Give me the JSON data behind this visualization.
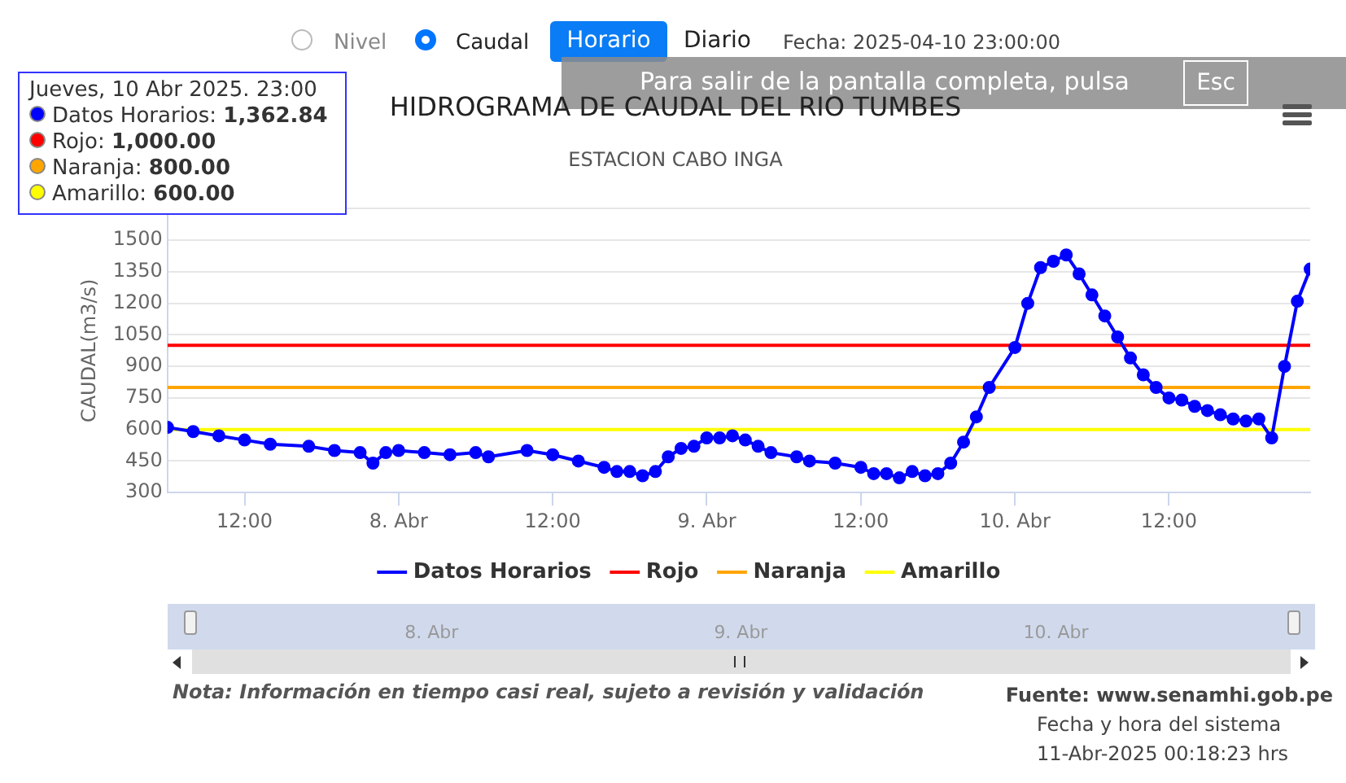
{
  "chart_data": {
    "type": "line",
    "title": "HIDROGRAMA DE CAUDAL DEL RIO TUMBES",
    "subtitle": "ESTACION CABO INGA",
    "ylabel": "CAUDAL(m3/s)",
    "series": [
      {
        "name": "Datos Horarios",
        "color": "#0000ff",
        "marker": "circle",
        "x": [
          "2025-04-07T06:00",
          "2025-04-07T08:00",
          "2025-04-07T10:00",
          "2025-04-07T12:00",
          "2025-04-07T14:00",
          "2025-04-07T17:00",
          "2025-04-07T19:00",
          "2025-04-07T21:00",
          "2025-04-07T22:00",
          "2025-04-07T23:00",
          "2025-04-08T00:00",
          "2025-04-08T02:00",
          "2025-04-08T04:00",
          "2025-04-08T06:00",
          "2025-04-08T07:00",
          "2025-04-08T10:00",
          "2025-04-08T12:00",
          "2025-04-08T14:00",
          "2025-04-08T16:00",
          "2025-04-08T17:00",
          "2025-04-08T18:00",
          "2025-04-08T19:00",
          "2025-04-08T20:00",
          "2025-04-08T21:00",
          "2025-04-08T22:00",
          "2025-04-08T23:00",
          "2025-04-09T00:00",
          "2025-04-09T01:00",
          "2025-04-09T02:00",
          "2025-04-09T03:00",
          "2025-04-09T04:00",
          "2025-04-09T05:00",
          "2025-04-09T07:00",
          "2025-04-09T08:00",
          "2025-04-09T10:00",
          "2025-04-09T12:00",
          "2025-04-09T13:00",
          "2025-04-09T14:00",
          "2025-04-09T15:00",
          "2025-04-09T16:00",
          "2025-04-09T17:00",
          "2025-04-09T18:00",
          "2025-04-09T19:00",
          "2025-04-09T20:00",
          "2025-04-09T21:00",
          "2025-04-09T22:00",
          "2025-04-10T00:00",
          "2025-04-10T01:00",
          "2025-04-10T02:00",
          "2025-04-10T03:00",
          "2025-04-10T04:00",
          "2025-04-10T05:00",
          "2025-04-10T06:00",
          "2025-04-10T07:00",
          "2025-04-10T08:00",
          "2025-04-10T09:00",
          "2025-04-10T10:00",
          "2025-04-10T11:00",
          "2025-04-10T12:00",
          "2025-04-10T13:00",
          "2025-04-10T14:00",
          "2025-04-10T15:00",
          "2025-04-10T16:00",
          "2025-04-10T17:00",
          "2025-04-10T18:00",
          "2025-04-10T19:00",
          "2025-04-10T20:00",
          "2025-04-10T21:00",
          "2025-04-10T22:00",
          "2025-04-10T23:00"
        ],
        "values": [
          610,
          590,
          570,
          550,
          530,
          520,
          500,
          490,
          440,
          490,
          500,
          490,
          480,
          490,
          470,
          500,
          480,
          450,
          420,
          400,
          400,
          380,
          400,
          470,
          510,
          520,
          560,
          560,
          570,
          550,
          520,
          490,
          470,
          450,
          440,
          420,
          390,
          390,
          370,
          400,
          380,
          390,
          440,
          540,
          660,
          800,
          990,
          1200,
          1370,
          1400,
          1430,
          1340,
          1240,
          1140,
          1040,
          940,
          860,
          800,
          750,
          740,
          710,
          690,
          670,
          650,
          640,
          650,
          560,
          900,
          1210,
          1362.84
        ]
      },
      {
        "name": "Rojo",
        "color": "#ff0000",
        "marker": "none",
        "x": [
          "2025-04-07T06:00",
          "2025-04-10T23:00"
        ],
        "values": [
          1000,
          1000
        ]
      },
      {
        "name": "Naranja",
        "color": "#ffa500",
        "marker": "none",
        "x": [
          "2025-04-07T06:00",
          "2025-04-10T23:00"
        ],
        "values": [
          800,
          800
        ]
      },
      {
        "name": "Amarillo",
        "color": "#ffff00",
        "marker": "none",
        "x": [
          "2025-04-07T06:00",
          "2025-04-10T23:00"
        ],
        "values": [
          600,
          600
        ]
      }
    ],
    "xlim": [
      "2025-04-07T06:00",
      "2025-04-10T23:00"
    ],
    "xticks": [
      {
        "value": "2025-04-07T12:00",
        "label": "12:00"
      },
      {
        "value": "2025-04-08T00:00",
        "label": "8. Abr"
      },
      {
        "value": "2025-04-08T12:00",
        "label": "12:00"
      },
      {
        "value": "2025-04-09T00:00",
        "label": "9. Abr"
      },
      {
        "value": "2025-04-09T12:00",
        "label": "12:00"
      },
      {
        "value": "2025-04-10T00:00",
        "label": "10. Abr"
      },
      {
        "value": "2025-04-10T12:00",
        "label": "12:00"
      }
    ],
    "ylim": [
      300,
      1650
    ],
    "yticks": [
      300,
      450,
      600,
      750,
      900,
      1050,
      1200,
      1350,
      1500,
      {
        "value": 1650,
        "label": null
      }
    ],
    "grid": "y",
    "legend": "bottom",
    "line_style": "solid",
    "annotations": [
      "Nivel",
      "Caudal",
      "Horario",
      "Diario",
      "Fecha: 2025-04-10 23:00:00",
      "Para salir de la pantalla completa, pulsa",
      "Esc",
      "Jueves, 10 Abr 2025. 23:00",
      "Datos Horarios: 1,362.84",
      "Rojo: 1,000.00",
      "Naranja: 800.00",
      "Amarillo: 600.00",
      "Nota: Información en tiempo casi real, sujeto a revisión y validación",
      "Fuente: www.senamhi.gob.pe",
      "Fecha y hora del sistema",
      "11-Abr-2025 00:18:23 hrs"
    ]
  }
}
